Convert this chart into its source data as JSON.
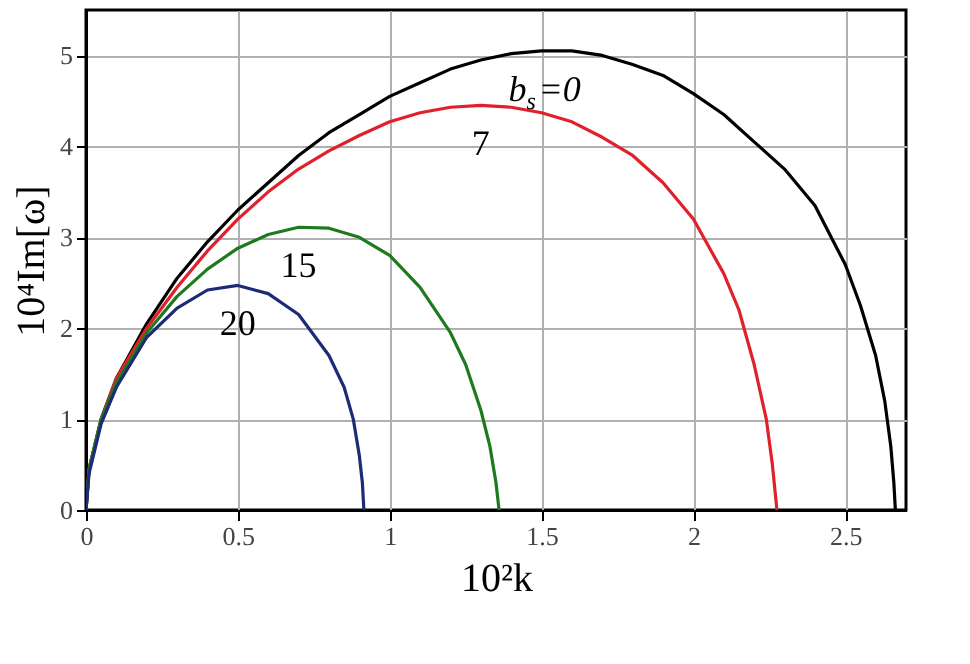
{
  "chart_data": {
    "type": "line",
    "xlabel": "10²k",
    "ylabel": "10⁴Im[ω]",
    "xlim": [
      0,
      2.7
    ],
    "ylim": [
      0,
      5.5
    ],
    "xticks": [
      0,
      0.5,
      1,
      1.5,
      2,
      2.5
    ],
    "yticks": [
      0,
      1,
      2,
      3,
      4,
      5
    ],
    "grid": true,
    "legend": false,
    "marker": "none",
    "line_style": "solid",
    "series": [
      {
        "name": "b$_{s}$=0",
        "color": "#000000",
        "x": [
          0,
          0.01,
          0.05,
          0.1,
          0.2,
          0.3,
          0.4,
          0.5,
          0.6,
          0.7,
          0.8,
          0.9,
          1.0,
          1.1,
          1.2,
          1.3,
          1.4,
          1.5,
          1.6,
          1.7,
          1.8,
          1.9,
          2.0,
          2.1,
          2.2,
          2.3,
          2.4,
          2.5,
          2.55,
          2.6,
          2.63,
          2.65,
          2.66,
          2.665
        ],
        "values": [
          0,
          0.45,
          1.0,
          1.45,
          2.05,
          2.55,
          2.95,
          3.3,
          3.6,
          3.9,
          4.15,
          4.35,
          4.55,
          4.7,
          4.85,
          4.95,
          5.02,
          5.05,
          5.05,
          5.0,
          4.9,
          4.78,
          4.58,
          4.35,
          4.05,
          3.75,
          3.35,
          2.7,
          2.25,
          1.7,
          1.2,
          0.7,
          0.3,
          0
        ]
      },
      {
        "name": "7",
        "color": "#e0202a",
        "x": [
          0,
          0.01,
          0.05,
          0.1,
          0.2,
          0.3,
          0.4,
          0.5,
          0.6,
          0.7,
          0.8,
          0.9,
          1.0,
          1.1,
          1.2,
          1.3,
          1.4,
          1.5,
          1.6,
          1.7,
          1.8,
          1.9,
          2.0,
          2.1,
          2.15,
          2.2,
          2.24,
          2.26,
          2.275
        ],
        "values": [
          0,
          0.45,
          1.0,
          1.45,
          2.0,
          2.45,
          2.85,
          3.2,
          3.5,
          3.75,
          3.95,
          4.12,
          4.27,
          4.37,
          4.43,
          4.45,
          4.43,
          4.37,
          4.27,
          4.1,
          3.9,
          3.6,
          3.2,
          2.6,
          2.2,
          1.6,
          1.0,
          0.5,
          0
        ]
      },
      {
        "name": "15",
        "color": "#1e7a1e",
        "x": [
          0,
          0.01,
          0.05,
          0.1,
          0.2,
          0.3,
          0.4,
          0.5,
          0.6,
          0.7,
          0.8,
          0.9,
          1.0,
          1.1,
          1.2,
          1.25,
          1.3,
          1.33,
          1.35,
          1.36
        ],
        "values": [
          0,
          0.45,
          1.0,
          1.4,
          1.95,
          2.35,
          2.65,
          2.88,
          3.03,
          3.11,
          3.1,
          3.0,
          2.8,
          2.45,
          1.95,
          1.6,
          1.1,
          0.7,
          0.3,
          0
        ]
      },
      {
        "name": "20",
        "color": "#1c2a78",
        "x": [
          0,
          0.01,
          0.05,
          0.1,
          0.2,
          0.3,
          0.4,
          0.5,
          0.6,
          0.7,
          0.8,
          0.85,
          0.88,
          0.9,
          0.91,
          0.915
        ],
        "values": [
          0,
          0.4,
          0.95,
          1.35,
          1.9,
          2.22,
          2.42,
          2.47,
          2.38,
          2.15,
          1.7,
          1.35,
          1.0,
          0.6,
          0.3,
          0
        ]
      }
    ]
  }
}
